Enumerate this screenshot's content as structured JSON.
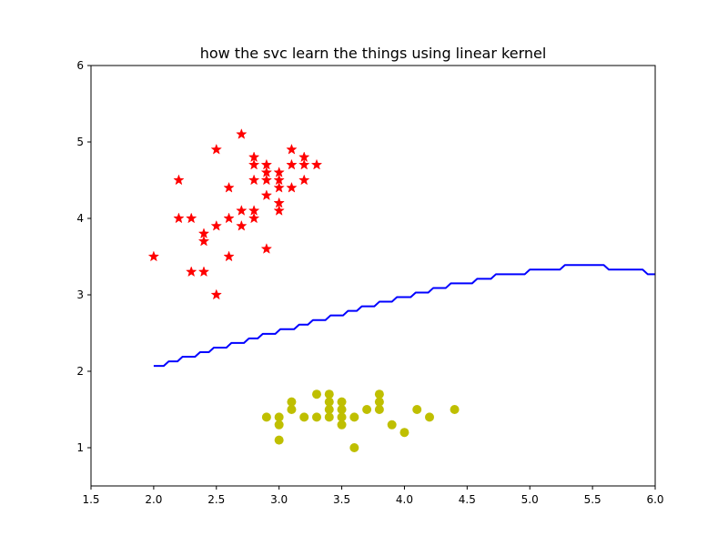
{
  "chart_data": {
    "type": "scatter",
    "title": "how the svc learn the things using linear kernel",
    "xlabel": "",
    "ylabel": "",
    "xlim": [
      1.5,
      6.0
    ],
    "ylim": [
      0.5,
      6.0
    ],
    "xticks": [
      "1.5",
      "2.0",
      "2.5",
      "3.0",
      "3.5",
      "4.0",
      "4.5",
      "5.0",
      "5.5",
      "6.0"
    ],
    "yticks": [
      "1",
      "2",
      "3",
      "4",
      "5",
      "6"
    ],
    "grid": false,
    "legend": "none",
    "series": [
      {
        "marker": "star",
        "color": "#ff0000",
        "points": [
          [
            2.0,
            3.5
          ],
          [
            2.2,
            4.5
          ],
          [
            2.2,
            4.0
          ],
          [
            2.3,
            4.0
          ],
          [
            2.3,
            3.3
          ],
          [
            2.4,
            3.8
          ],
          [
            2.4,
            3.7
          ],
          [
            2.4,
            3.3
          ],
          [
            2.5,
            4.9
          ],
          [
            2.5,
            3.9
          ],
          [
            2.5,
            3.0
          ],
          [
            2.6,
            4.4
          ],
          [
            2.6,
            4.0
          ],
          [
            2.6,
            3.5
          ],
          [
            2.7,
            5.1
          ],
          [
            2.7,
            4.1
          ],
          [
            2.7,
            3.9
          ],
          [
            2.8,
            4.8
          ],
          [
            2.8,
            4.7
          ],
          [
            2.8,
            4.5
          ],
          [
            2.8,
            4.1
          ],
          [
            2.8,
            4.0
          ],
          [
            2.9,
            4.7
          ],
          [
            2.9,
            4.6
          ],
          [
            2.9,
            4.5
          ],
          [
            2.9,
            4.3
          ],
          [
            2.9,
            3.6
          ],
          [
            3.0,
            4.6
          ],
          [
            3.0,
            4.5
          ],
          [
            3.0,
            4.4
          ],
          [
            3.0,
            4.2
          ],
          [
            3.0,
            4.1
          ],
          [
            3.1,
            4.9
          ],
          [
            3.1,
            4.7
          ],
          [
            3.1,
            4.4
          ],
          [
            3.2,
            4.8
          ],
          [
            3.2,
            4.7
          ],
          [
            3.2,
            4.5
          ],
          [
            3.3,
            4.7
          ]
        ]
      },
      {
        "marker": "circle",
        "color": "#bfbf00",
        "points": [
          [
            2.9,
            1.4
          ],
          [
            3.0,
            1.4
          ],
          [
            3.0,
            1.3
          ],
          [
            3.0,
            1.1
          ],
          [
            3.1,
            1.6
          ],
          [
            3.1,
            1.5
          ],
          [
            3.2,
            1.4
          ],
          [
            3.3,
            1.7
          ],
          [
            3.3,
            1.4
          ],
          [
            3.4,
            1.7
          ],
          [
            3.4,
            1.6
          ],
          [
            3.4,
            1.5
          ],
          [
            3.4,
            1.4
          ],
          [
            3.5,
            1.6
          ],
          [
            3.5,
            1.5
          ],
          [
            3.5,
            1.4
          ],
          [
            3.5,
            1.3
          ],
          [
            3.6,
            1.4
          ],
          [
            3.6,
            1.0
          ],
          [
            3.7,
            1.5
          ],
          [
            3.8,
            1.7
          ],
          [
            3.8,
            1.6
          ],
          [
            3.8,
            1.5
          ],
          [
            3.9,
            1.3
          ],
          [
            4.0,
            1.2
          ],
          [
            4.1,
            1.5
          ],
          [
            4.2,
            1.4
          ],
          [
            4.4,
            1.5
          ]
        ]
      }
    ],
    "boundary": {
      "color": "#0000ff",
      "points": [
        [
          2.0,
          2.07
        ],
        [
          2.08,
          2.07
        ],
        [
          2.12,
          2.13
        ],
        [
          2.19,
          2.13
        ],
        [
          2.23,
          2.19
        ],
        [
          2.33,
          2.19
        ],
        [
          2.37,
          2.25
        ],
        [
          2.44,
          2.25
        ],
        [
          2.48,
          2.31
        ],
        [
          2.58,
          2.31
        ],
        [
          2.62,
          2.37
        ],
        [
          2.72,
          2.37
        ],
        [
          2.76,
          2.43
        ],
        [
          2.83,
          2.43
        ],
        [
          2.87,
          2.49
        ],
        [
          2.97,
          2.49
        ],
        [
          3.01,
          2.55
        ],
        [
          3.12,
          2.55
        ],
        [
          3.16,
          2.61
        ],
        [
          3.23,
          2.61
        ],
        [
          3.27,
          2.67
        ],
        [
          3.37,
          2.67
        ],
        [
          3.41,
          2.73
        ],
        [
          3.51,
          2.73
        ],
        [
          3.55,
          2.79
        ],
        [
          3.62,
          2.79
        ],
        [
          3.66,
          2.85
        ],
        [
          3.76,
          2.85
        ],
        [
          3.8,
          2.91
        ],
        [
          3.9,
          2.91
        ],
        [
          3.94,
          2.97
        ],
        [
          4.05,
          2.97
        ],
        [
          4.09,
          3.03
        ],
        [
          4.19,
          3.03
        ],
        [
          4.23,
          3.09
        ],
        [
          4.33,
          3.09
        ],
        [
          4.37,
          3.15
        ],
        [
          4.54,
          3.15
        ],
        [
          4.58,
          3.21
        ],
        [
          4.69,
          3.21
        ],
        [
          4.73,
          3.27
        ],
        [
          4.96,
          3.27
        ],
        [
          5.0,
          3.33
        ],
        [
          5.24,
          3.33
        ],
        [
          5.28,
          3.39
        ],
        [
          5.59,
          3.39
        ],
        [
          5.63,
          3.33
        ],
        [
          5.9,
          3.33
        ],
        [
          5.94,
          3.27
        ],
        [
          6.0,
          3.27
        ]
      ]
    }
  }
}
